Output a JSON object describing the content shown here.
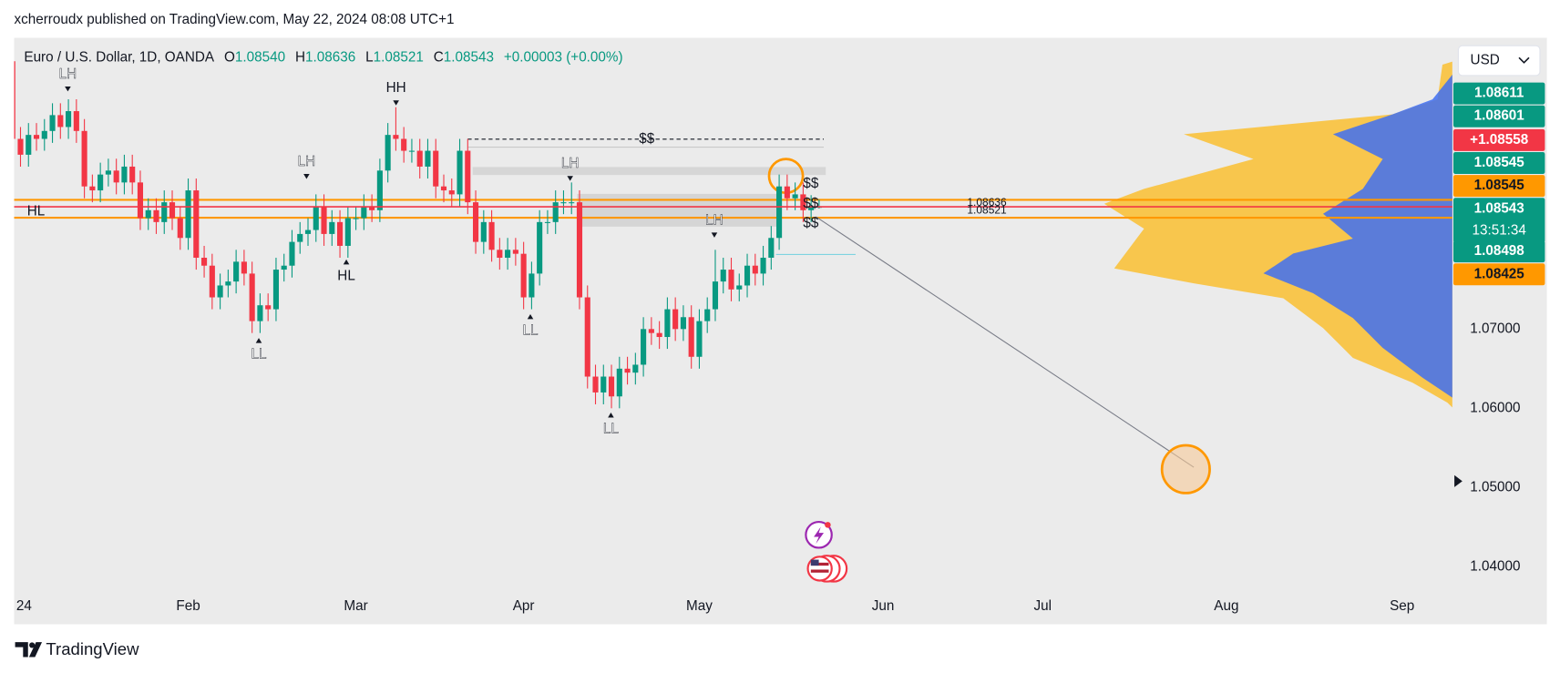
{
  "header": {
    "publisher": "xcherroudx published on TradingView.com, May 22, 2024 08:08 UTC+1"
  },
  "footer": {
    "brand": "TradingView"
  },
  "chart_data": {
    "type": "candlestick",
    "symbol": "Euro / U.S. Dollar, 1D, OANDA",
    "ohlc_labels": [
      {
        "label": "O",
        "value": "1.08540"
      },
      {
        "label": "H",
        "value": "1.08636"
      },
      {
        "label": "L",
        "value": "1.08521"
      },
      {
        "label": "C",
        "value": "1.08543"
      }
    ],
    "change": "+0.00003 (+0.00%)",
    "currency": "USD",
    "x": [
      0,
      1,
      2,
      3,
      4,
      5,
      6,
      7,
      8,
      9,
      10,
      11,
      12,
      13,
      14,
      15,
      16,
      17,
      18,
      19,
      20,
      21,
      22,
      23,
      24,
      25,
      26,
      27,
      28,
      29,
      30,
      31,
      32,
      33,
      34,
      35,
      36,
      37,
      38,
      39,
      40,
      41,
      42,
      43,
      44,
      45,
      46,
      47,
      48,
      49,
      50,
      51,
      52,
      53,
      54,
      55,
      56,
      57,
      58,
      59,
      60,
      61,
      62,
      63,
      64,
      65,
      66,
      67,
      68,
      69,
      70,
      71,
      72,
      73,
      74,
      75,
      76,
      77,
      78,
      79,
      80,
      81,
      82,
      83,
      84,
      85,
      86,
      87,
      88,
      89,
      90,
      91,
      92,
      93,
      94,
      95,
      96,
      97,
      98,
      99,
      100,
      101,
      102
    ],
    "open": [
      1.104,
      1.1038,
      1.094,
      1.092,
      1.0945,
      1.094,
      1.095,
      1.097,
      1.0955,
      1.0975,
      1.095,
      1.088,
      1.0875,
      1.0895,
      1.09,
      1.0885,
      1.0905,
      1.0885,
      1.084,
      1.085,
      1.0835,
      1.086,
      1.084,
      1.0815,
      1.0875,
      1.079,
      1.078,
      1.074,
      1.0755,
      1.076,
      1.0785,
      1.077,
      1.071,
      1.073,
      1.0725,
      1.0775,
      1.078,
      1.081,
      1.082,
      1.0825,
      1.0855,
      1.082,
      1.0835,
      1.0805,
      1.084,
      1.084,
      1.0855,
      1.085,
      1.09,
      1.0945,
      1.094,
      1.0925,
      1.0925,
      1.0905,
      1.0925,
      1.088,
      1.0875,
      1.087,
      1.0925,
      1.086,
      1.081,
      1.0835,
      1.08,
      1.079,
      1.08,
      1.0795,
      1.074,
      1.077,
      1.0835,
      1.0835,
      1.086,
      1.086,
      1.086,
      1.074,
      1.064,
      1.062,
      1.064,
      1.0615,
      1.065,
      1.0645,
      1.0655,
      1.07,
      1.0695,
      1.069,
      1.0725,
      1.07,
      1.0715,
      1.0665,
      1.071,
      1.0725,
      1.076,
      1.0775,
      1.075,
      1.0755,
      1.078,
      1.077,
      1.079,
      1.0815,
      1.088,
      1.0865,
      1.087,
      1.085,
      1.0854
    ],
    "high": [
      1.1055,
      1.1053,
      1.0955,
      1.096,
      1.096,
      1.0965,
      1.0985,
      1.0985,
      1.099,
      1.099,
      1.0965,
      1.0895,
      1.091,
      1.0915,
      1.0915,
      1.092,
      1.092,
      1.09,
      1.0865,
      1.0865,
      1.0875,
      1.0875,
      1.0855,
      1.089,
      1.089,
      1.0805,
      1.0795,
      1.077,
      1.0775,
      1.08,
      1.08,
      1.0785,
      1.0745,
      1.0745,
      1.079,
      1.0795,
      1.0825,
      1.0835,
      1.084,
      1.087,
      1.087,
      1.085,
      1.085,
      1.0855,
      1.0855,
      1.087,
      1.087,
      1.0915,
      1.096,
      1.098,
      1.0955,
      1.094,
      1.094,
      1.094,
      1.094,
      1.0895,
      1.089,
      1.094,
      1.094,
      1.0875,
      1.085,
      1.085,
      1.0815,
      1.0815,
      1.0815,
      1.081,
      1.0785,
      1.085,
      1.085,
      1.0875,
      1.0875,
      1.0885,
      1.0875,
      1.0755,
      1.0655,
      1.0655,
      1.0655,
      1.0665,
      1.0665,
      1.067,
      1.0715,
      1.0715,
      1.071,
      1.074,
      1.074,
      1.073,
      1.073,
      1.0725,
      1.074,
      1.08,
      1.079,
      1.079,
      1.077,
      1.0795,
      1.0795,
      1.0805,
      1.083,
      1.0895,
      1.0895,
      1.0885,
      1.0885,
      1.0869,
      1.08636
    ],
    "low": [
      1.1023,
      1.0925,
      1.0905,
      1.0905,
      1.0925,
      1.0925,
      1.0935,
      1.094,
      1.094,
      1.0935,
      1.0865,
      1.086,
      1.086,
      1.088,
      1.087,
      1.087,
      1.087,
      1.0825,
      1.0825,
      1.082,
      1.082,
      1.0825,
      1.08,
      1.08,
      1.0775,
      1.0765,
      1.0725,
      1.0725,
      1.074,
      1.0745,
      1.0755,
      1.0695,
      1.0695,
      1.071,
      1.071,
      1.076,
      1.0765,
      1.0795,
      1.0805,
      1.081,
      1.0805,
      1.0805,
      1.079,
      1.079,
      1.0825,
      1.0825,
      1.0835,
      1.0835,
      1.0885,
      1.0925,
      1.091,
      1.091,
      1.089,
      1.089,
      1.0865,
      1.086,
      1.0855,
      1.0855,
      1.0845,
      1.0795,
      1.0795,
      1.0785,
      1.0775,
      1.0775,
      1.078,
      1.0725,
      1.0725,
      1.0755,
      1.082,
      1.082,
      1.0845,
      1.0845,
      1.0725,
      1.0625,
      1.0605,
      1.0605,
      1.06,
      1.06,
      1.063,
      1.063,
      1.064,
      1.068,
      1.0675,
      1.0675,
      1.0685,
      1.0685,
      1.065,
      1.065,
      1.0695,
      1.071,
      1.0745,
      1.0735,
      1.0735,
      1.074,
      1.0755,
      1.0755,
      1.0775,
      1.08,
      1.085,
      1.085,
      1.0835,
      1.0835,
      1.08521
    ],
    "close": [
      1.1038,
      1.094,
      1.092,
      1.0945,
      1.094,
      1.095,
      1.097,
      1.0955,
      1.0975,
      1.095,
      1.088,
      1.0875,
      1.0895,
      1.09,
      1.0885,
      1.0905,
      1.0885,
      1.084,
      1.085,
      1.0835,
      1.086,
      1.084,
      1.0815,
      1.0875,
      1.079,
      1.078,
      1.074,
      1.0755,
      1.076,
      1.0785,
      1.077,
      1.071,
      1.073,
      1.0725,
      1.0775,
      1.078,
      1.081,
      1.082,
      1.0825,
      1.0855,
      1.082,
      1.0835,
      1.0805,
      1.084,
      1.084,
      1.0855,
      1.085,
      1.09,
      1.0945,
      1.094,
      1.0925,
      1.0925,
      1.0905,
      1.0925,
      1.088,
      1.0875,
      1.087,
      1.0925,
      1.086,
      1.081,
      1.0835,
      1.08,
      1.079,
      1.08,
      1.0795,
      1.074,
      1.077,
      1.0835,
      1.0835,
      1.086,
      1.086,
      1.086,
      1.074,
      1.064,
      1.062,
      1.064,
      1.0615,
      1.065,
      1.0645,
      1.0655,
      1.07,
      1.0695,
      1.069,
      1.0725,
      1.07,
      1.0715,
      1.0665,
      1.071,
      1.0725,
      1.076,
      1.0775,
      1.075,
      1.0755,
      1.078,
      1.077,
      1.079,
      1.0815,
      1.088,
      1.0865,
      1.087,
      1.085,
      1.0854,
      1.08543
    ],
    "up_color": "#089981",
    "down_color": "#f23645",
    "xlim": [
      1.2,
      181.3
    ],
    "xticks": [
      {
        "value": 0,
        "label": "24"
      },
      {
        "value": 23,
        "label": "Feb"
      },
      {
        "value": 44,
        "label": "Mar"
      },
      {
        "value": 65,
        "label": "Apr"
      },
      {
        "value": 87,
        "label": "May"
      },
      {
        "value": 110,
        "label": "Jun"
      },
      {
        "value": 130,
        "label": "Jul"
      },
      {
        "value": 153,
        "label": "Aug"
      },
      {
        "value": 175,
        "label": "Sep"
      }
    ],
    "ylim": [
      1.03688,
      1.10676
    ],
    "yticks": [
      {
        "value": 1.07,
        "label": "1.07000"
      },
      {
        "value": 1.06,
        "label": "1.06000"
      },
      {
        "value": 1.05,
        "label": "1.05000"
      },
      {
        "value": 1.04,
        "label": "1.04000"
      }
    ],
    "price_tags": [
      {
        "label": "1.08611",
        "color": "#089981",
        "text_color": "#ffffff"
      },
      {
        "label": "1.08601",
        "color": "#089981",
        "text_color": "#ffffff"
      },
      {
        "label": "+1.08558",
        "color": "#f23645",
        "text_color": "#ffffff"
      },
      {
        "label": "1.08545",
        "color": "#089981",
        "text_color": "#ffffff"
      },
      {
        "label": "1.08545",
        "color": "#ff9800",
        "text_color": "#131722"
      },
      {
        "label": "1.08543",
        "color": "#089981",
        "text_color": "#ffffff"
      },
      {
        "label": "1.08498",
        "color": "#089981",
        "text_color": "#ffffff"
      },
      {
        "label": "1.08425",
        "color": "#ff9800",
        "text_color": "#131722"
      }
    ],
    "countdown": "13:51:34",
    "annotations": [
      "LH",
      "HL",
      "LL",
      "LH",
      "HL",
      "HH",
      "LH",
      "LL",
      "LL",
      "LH",
      "$$",
      "$$",
      "$$",
      "$$",
      "1.08636",
      "1.08521"
    ]
  }
}
